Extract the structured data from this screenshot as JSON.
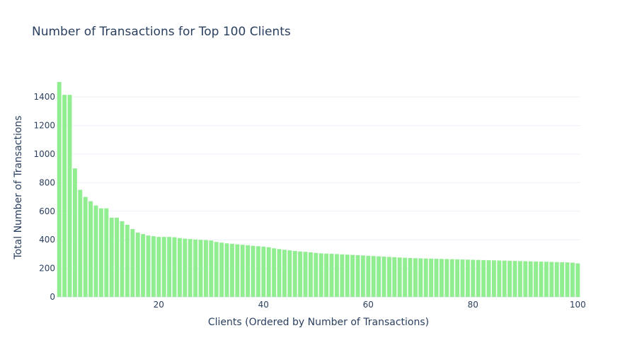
{
  "chart_data": {
    "type": "bar",
    "title": "Number of Transactions for Top 100 Clients",
    "xlabel": "Clients (Ordered by Number of Transactions)",
    "ylabel": "Total Number of Transactions",
    "x": [
      1,
      2,
      3,
      4,
      5,
      6,
      7,
      8,
      9,
      10,
      11,
      12,
      13,
      14,
      15,
      16,
      17,
      18,
      19,
      20,
      21,
      22,
      23,
      24,
      25,
      26,
      27,
      28,
      29,
      30,
      31,
      32,
      33,
      34,
      35,
      36,
      37,
      38,
      39,
      40,
      41,
      42,
      43,
      44,
      45,
      46,
      47,
      48,
      49,
      50,
      51,
      52,
      53,
      54,
      55,
      56,
      57,
      58,
      59,
      60,
      61,
      62,
      63,
      64,
      65,
      66,
      67,
      68,
      69,
      70,
      71,
      72,
      73,
      74,
      75,
      76,
      77,
      78,
      79,
      80,
      81,
      82,
      83,
      84,
      85,
      86,
      87,
      88,
      89,
      90,
      91,
      92,
      93,
      94,
      95,
      96,
      97,
      98,
      99,
      100
    ],
    "values": [
      1505,
      1415,
      1415,
      900,
      750,
      700,
      670,
      640,
      620,
      620,
      555,
      555,
      530,
      505,
      475,
      450,
      440,
      430,
      425,
      420,
      420,
      420,
      418,
      412,
      408,
      405,
      402,
      400,
      398,
      395,
      385,
      380,
      375,
      372,
      368,
      365,
      362,
      358,
      355,
      352,
      348,
      340,
      335,
      330,
      326,
      322,
      318,
      316,
      312,
      308,
      305,
      303,
      302,
      300,
      298,
      296,
      294,
      292,
      290,
      288,
      286,
      284,
      282,
      280,
      278,
      276,
      274,
      272,
      271,
      270,
      269,
      268,
      267,
      266,
      265,
      264,
      263,
      262,
      261,
      260,
      259,
      258,
      257,
      256,
      255,
      254,
      253,
      252,
      251,
      250,
      249,
      248,
      247,
      246,
      245,
      244,
      243,
      242,
      240,
      235
    ],
    "x_ticks": [
      20,
      40,
      60,
      80,
      100
    ],
    "y_ticks": [
      0,
      200,
      400,
      600,
      800,
      1000,
      1200,
      1400
    ],
    "xlim": [
      0.5,
      100.5
    ],
    "ylim": [
      0,
      1584
    ],
    "grid": true,
    "colors": {
      "bar": "#90ee90",
      "grid": "#ebf0f8",
      "text": "#2a3f5f",
      "zeroline": "#ebf0f8"
    }
  }
}
